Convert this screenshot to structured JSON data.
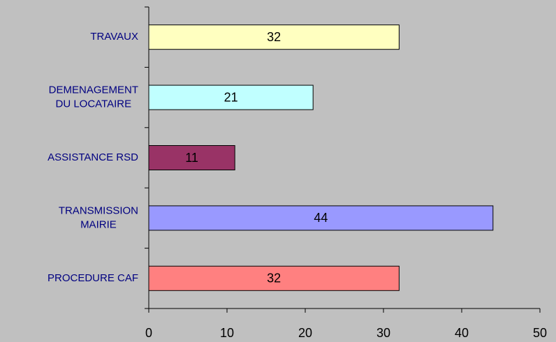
{
  "chart_data": {
    "type": "bar",
    "orientation": "horizontal",
    "categories": [
      "TRAVAUX",
      "DEMENAGEMENT\nDU LOCATAIRE",
      "ASSISTANCE RSD",
      "TRANSMISSION\nMAIRIE",
      "PROCEDURE CAF"
    ],
    "values": [
      32,
      21,
      11,
      44,
      32
    ],
    "colors": [
      "#ffffc0",
      "#c0ffff",
      "#993366",
      "#9999ff",
      "#ff8080"
    ],
    "xlim": [
      0,
      50
    ],
    "xticks": [
      0,
      10,
      20,
      30,
      40,
      50
    ],
    "grid": false
  }
}
